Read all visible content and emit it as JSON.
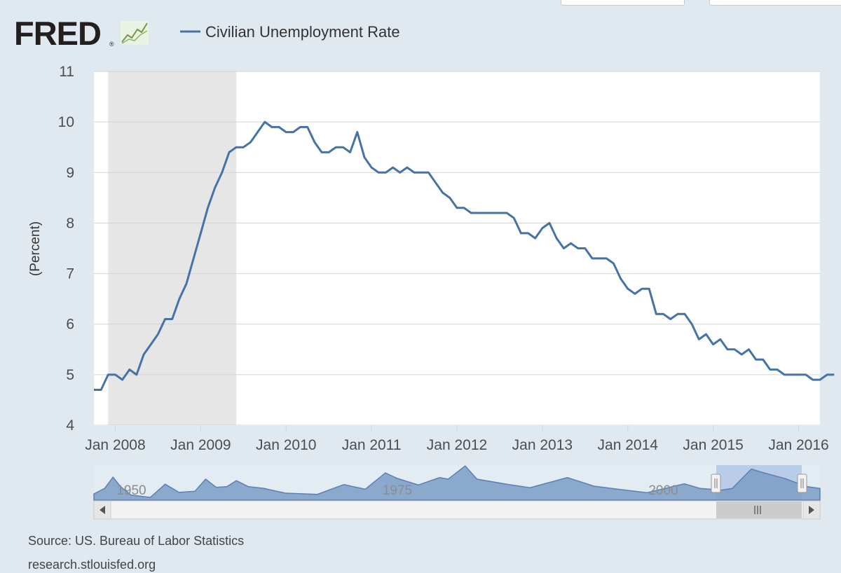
{
  "brand": {
    "name": "FRED",
    "registered": "®"
  },
  "legend": {
    "label": "Civilian Unemployment Rate"
  },
  "footer": {
    "source": "Source: US. Bureau of Labor Statistics",
    "site": "research.stlouisfed.org"
  },
  "colors": {
    "series": "#4572a7",
    "recession": "#e6e6e6",
    "navigator_fill": "#7b9cc6",
    "navigator_selected": "#b9cde9",
    "background": "#e1e9f0"
  },
  "icons": {
    "logo_graph": "trend-chart-icon",
    "scroll_left": "left-arrow-icon",
    "scroll_right": "right-arrow-icon",
    "scroll_grip": "grip-icon",
    "nav_handle": "handle-icon"
  },
  "chart_data": {
    "type": "line",
    "title": "",
    "ylabel": "(Percent)",
    "xlabel": "",
    "ylim": [
      4,
      11
    ],
    "yticks": [
      4,
      5,
      6,
      7,
      8,
      9,
      10,
      11
    ],
    "x_start": "2007-10",
    "x_end": "2016-04",
    "xtick_labels": [
      "Jan 2008",
      "Jan 2009",
      "Jan 2010",
      "Jan 2011",
      "Jan 2012",
      "Jan 2013",
      "Jan 2014",
      "Jan 2015",
      "Jan 2016"
    ],
    "xtick_dates": [
      "2008-01",
      "2009-01",
      "2010-01",
      "2011-01",
      "2012-01",
      "2013-01",
      "2014-01",
      "2015-01",
      "2016-01"
    ],
    "recession": {
      "start": "2007-12",
      "end": "2009-06"
    },
    "grid": true,
    "legend_position": "top",
    "series": [
      {
        "name": "Civilian Unemployment Rate",
        "start": "2007-10",
        "values": [
          4.7,
          4.7,
          5.0,
          5.0,
          4.9,
          5.1,
          5.0,
          5.4,
          5.6,
          5.8,
          6.1,
          6.1,
          6.5,
          6.8,
          7.3,
          7.8,
          8.3,
          8.7,
          9.0,
          9.4,
          9.5,
          9.5,
          9.6,
          9.8,
          10.0,
          9.9,
          9.9,
          9.8,
          9.8,
          9.9,
          9.9,
          9.6,
          9.4,
          9.4,
          9.5,
          9.5,
          9.4,
          9.8,
          9.3,
          9.1,
          9.0,
          9.0,
          9.1,
          9.0,
          9.1,
          9.0,
          9.0,
          9.0,
          8.8,
          8.6,
          8.5,
          8.3,
          8.3,
          8.2,
          8.2,
          8.2,
          8.2,
          8.2,
          8.2,
          8.1,
          7.8,
          7.8,
          7.7,
          7.9,
          8.0,
          7.7,
          7.5,
          7.6,
          7.5,
          7.5,
          7.3,
          7.3,
          7.3,
          7.2,
          6.9,
          6.7,
          6.6,
          6.7,
          6.7,
          6.2,
          6.2,
          6.1,
          6.2,
          6.2,
          6.0,
          5.7,
          5.8,
          5.6,
          5.7,
          5.5,
          5.5,
          5.4,
          5.5,
          5.3,
          5.3,
          5.1,
          5.1,
          5.0,
          5.0,
          5.0,
          5.0,
          4.9,
          4.9,
          5.0,
          5.0
        ]
      }
    ],
    "navigator": {
      "labels": [
        "1950",
        "1975",
        "2000"
      ],
      "label_years": [
        1950,
        1975,
        2000
      ],
      "start_year": 1948,
      "end_year": 2016.25,
      "ylim": [
        2,
        11
      ],
      "points": [
        [
          1948,
          3.6
        ],
        [
          1949,
          5.0
        ],
        [
          1949.8,
          7.9
        ],
        [
          1950.5,
          5.5
        ],
        [
          1951.5,
          3.3
        ],
        [
          1953.3,
          2.7
        ],
        [
          1954.7,
          6.1
        ],
        [
          1956,
          4.0
        ],
        [
          1957.5,
          4.3
        ],
        [
          1958.5,
          7.4
        ],
        [
          1959.5,
          5.3
        ],
        [
          1960.5,
          5.5
        ],
        [
          1961.4,
          7.0
        ],
        [
          1962.5,
          5.5
        ],
        [
          1964,
          5.0
        ],
        [
          1966,
          3.8
        ],
        [
          1969,
          3.5
        ],
        [
          1970.5,
          5.0
        ],
        [
          1971.5,
          6.0
        ],
        [
          1973.5,
          4.8
        ],
        [
          1975.4,
          9.0
        ],
        [
          1976.5,
          7.6
        ],
        [
          1978.5,
          5.9
        ],
        [
          1980.5,
          7.8
        ],
        [
          1981.3,
          7.4
        ],
        [
          1982.9,
          10.8
        ],
        [
          1984,
          7.4
        ],
        [
          1987,
          6.0
        ],
        [
          1989,
          5.2
        ],
        [
          1992.5,
          7.8
        ],
        [
          1995,
          5.6
        ],
        [
          1997,
          4.9
        ],
        [
          2000,
          3.9
        ],
        [
          2003.5,
          6.2
        ],
        [
          2005,
          5.0
        ],
        [
          2007,
          4.6
        ],
        [
          2008,
          5.0
        ],
        [
          2009.8,
          10.0
        ],
        [
          2011,
          9.0
        ],
        [
          2013,
          7.5
        ],
        [
          2015,
          5.5
        ],
        [
          2016.25,
          5.0
        ]
      ]
    }
  }
}
